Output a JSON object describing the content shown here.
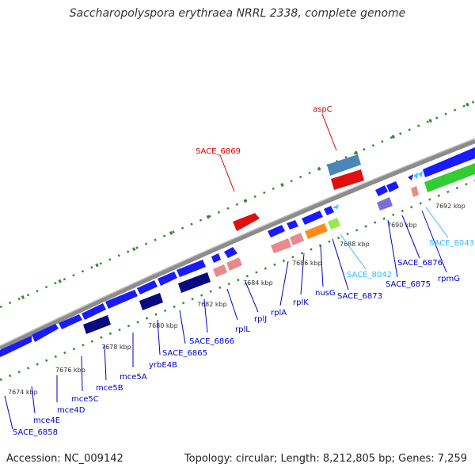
{
  "title": "Saccharopolyspora erythraea NRRL 2338, complete genome",
  "footer": {
    "accession": "Accession: NC_009142",
    "summary": "Topology: circular; Length: 8,212,805 bp; Genes: 7,259"
  },
  "colors": {
    "background": "#ffffff",
    "backbone": "#8c8c8c",
    "tick_dot": "#2e8b2e",
    "gene_blue": "#1a1aff",
    "gene_navy": "#0a0a80",
    "gene_pink": "#e88a8a",
    "gene_red": "#e01010",
    "gene_steel": "#4a86b8",
    "gene_orange": "#ff8c1a",
    "gene_lime": "#99e64d",
    "gene_green": "#33cc33",
    "gene_lavender": "#7b6fd6",
    "gene_cyan": "#40c8ff",
    "label_blue": "#0000cc",
    "label_red": "#dd0000",
    "label_cyan": "#33bbff"
  },
  "ticks": [
    "7674 kbp",
    "7676 kbp",
    "7678 kbp",
    "7680 kbp",
    "7682 kbp",
    "7684 kbp",
    "7686 kbp",
    "7688 kbp",
    "7690 kbp",
    "7692 kbp"
  ],
  "gene_labels": [
    {
      "text": "SACE_6858",
      "color": "blue"
    },
    {
      "text": "mce4E",
      "color": "blue"
    },
    {
      "text": "mce4D",
      "color": "blue"
    },
    {
      "text": "mce5C",
      "color": "blue"
    },
    {
      "text": "mce5B",
      "color": "blue"
    },
    {
      "text": "mce5A",
      "color": "blue"
    },
    {
      "text": "yrbE4B",
      "color": "blue"
    },
    {
      "text": "SACE_6865",
      "color": "blue"
    },
    {
      "text": "SACE_6866",
      "color": "blue"
    },
    {
      "text": "rplL",
      "color": "blue"
    },
    {
      "text": "rplJ",
      "color": "blue"
    },
    {
      "text": "rplA",
      "color": "blue"
    },
    {
      "text": "rplK",
      "color": "blue"
    },
    {
      "text": "nusG",
      "color": "blue"
    },
    {
      "text": "SACE_6873",
      "color": "blue"
    },
    {
      "text": "SACE_8042",
      "color": "cyan"
    },
    {
      "text": "SACE_6875",
      "color": "blue"
    },
    {
      "text": "SACE_6876",
      "color": "blue"
    },
    {
      "text": "SACE_8043",
      "color": "cyan"
    },
    {
      "text": "rpmG",
      "color": "blue"
    },
    {
      "text": "SACE_6869",
      "color": "red"
    },
    {
      "text": "aspC",
      "color": "red"
    }
  ]
}
